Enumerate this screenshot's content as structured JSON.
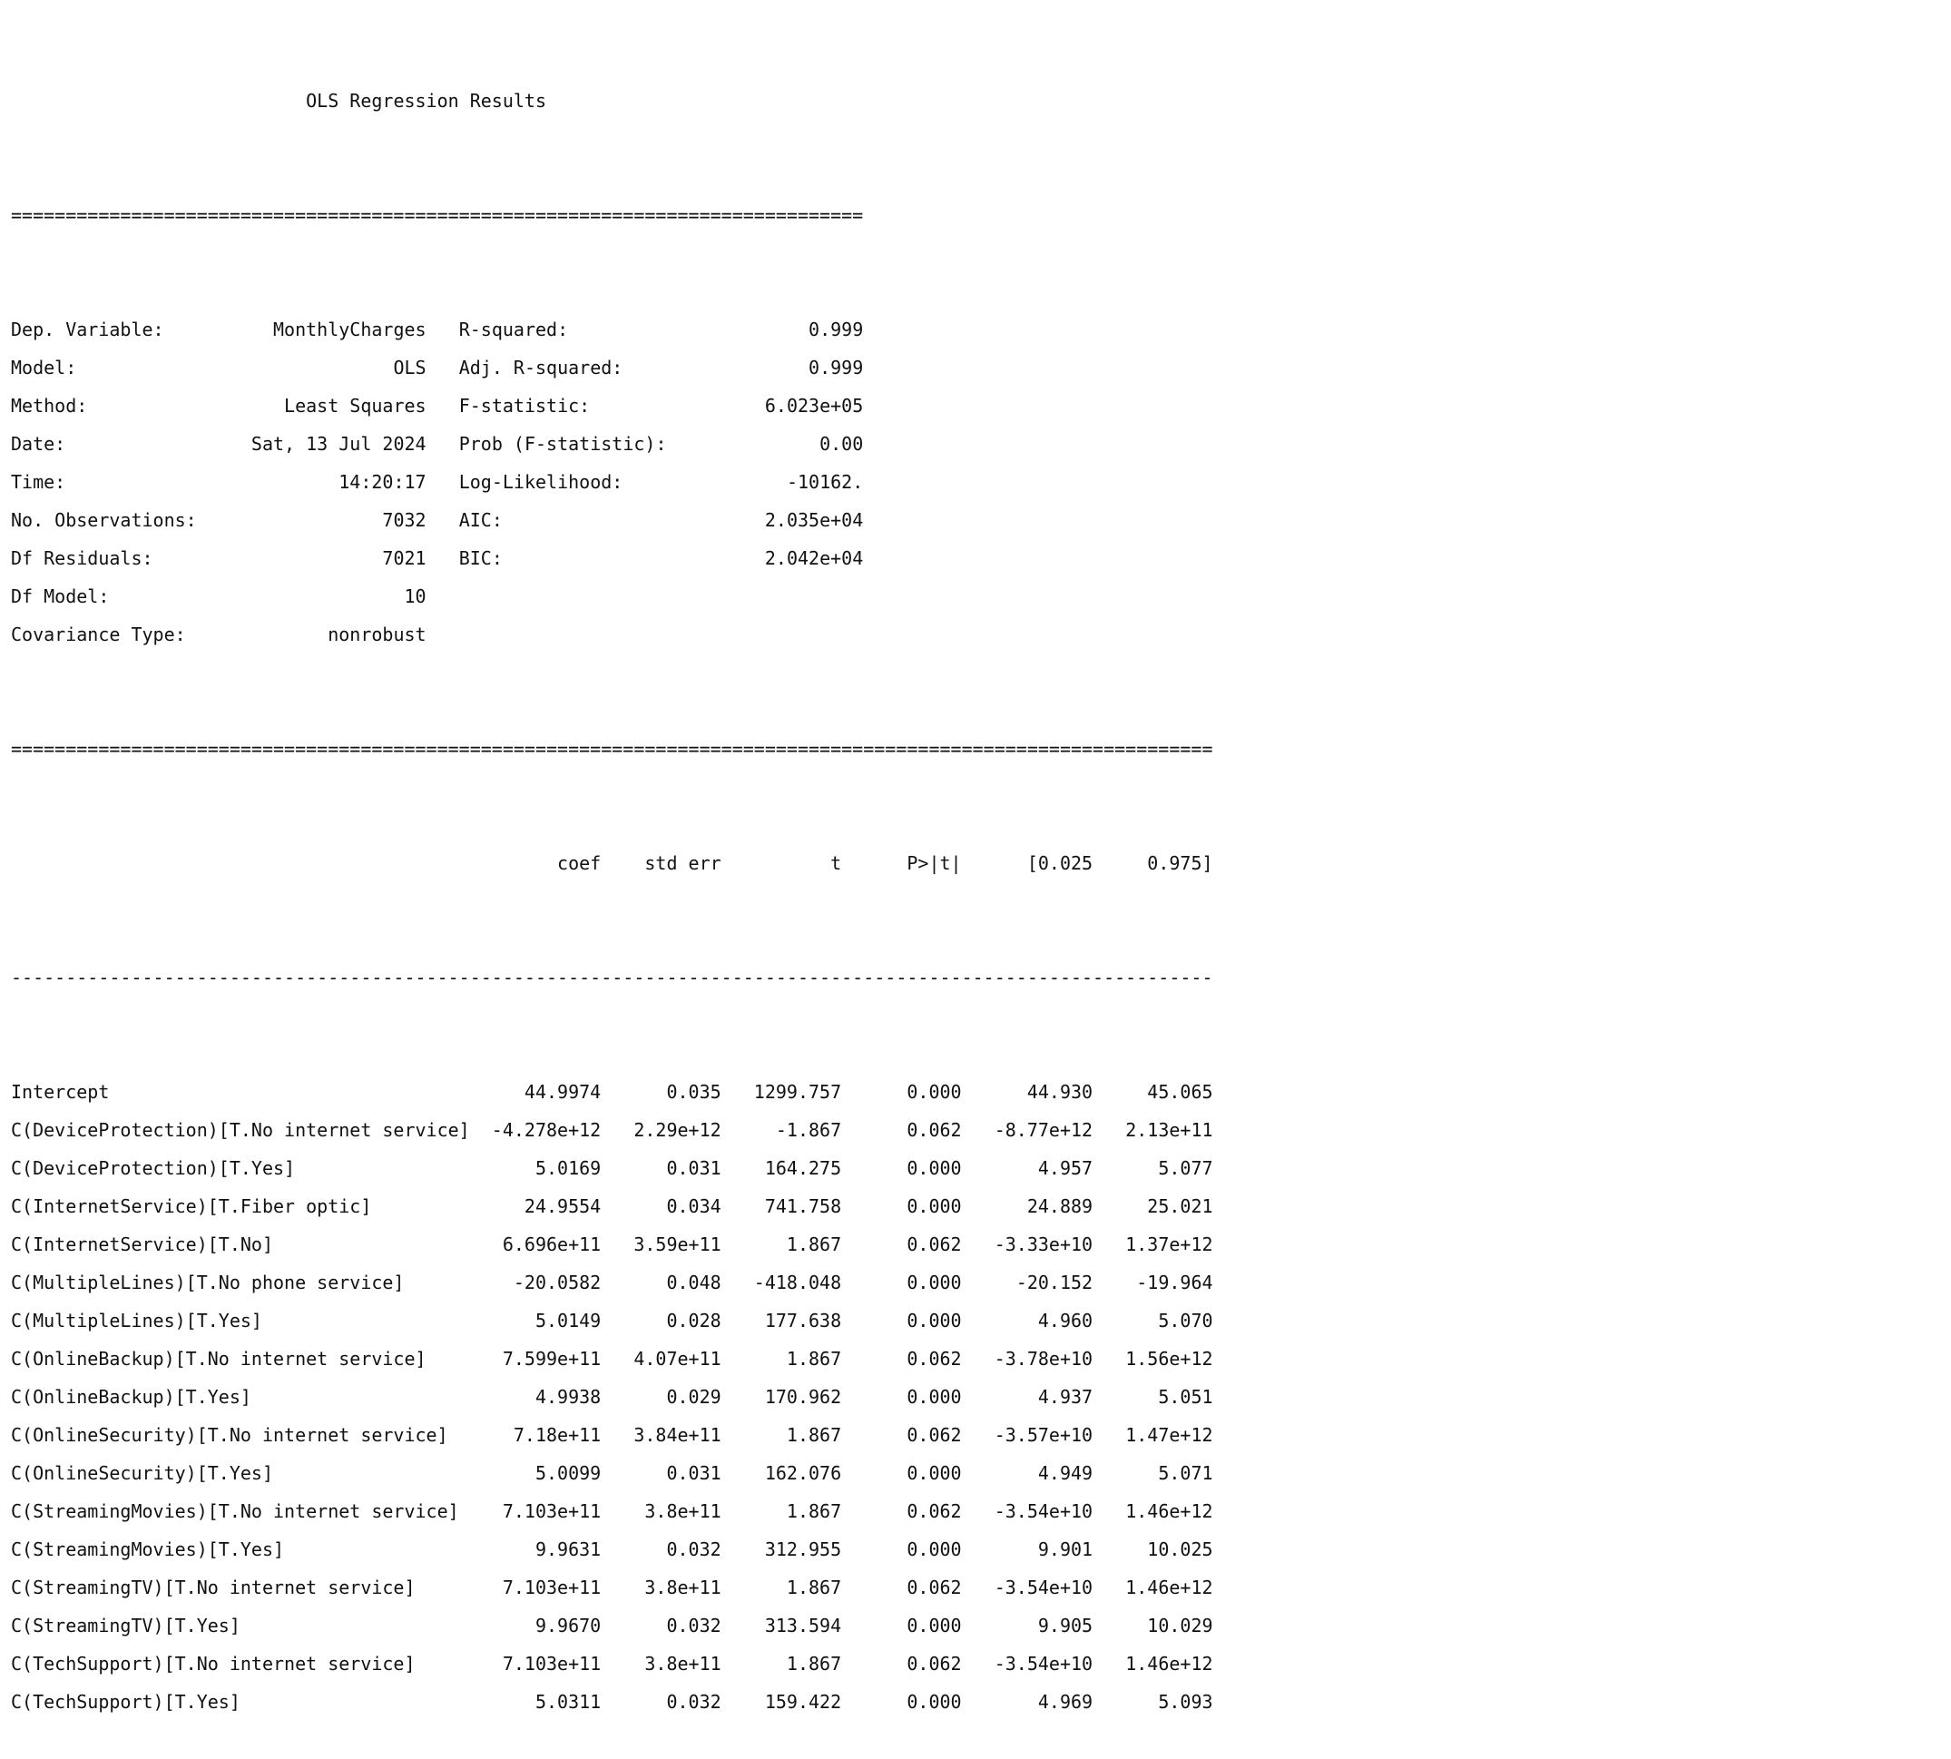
{
  "title": "OLS Regression Results",
  "separator_top": "==============================================================================",
  "separator_full": "==============================================================================================================",
  "separator_dash": "--------------------------------------------------------------------------------------------------------------",
  "summary": [
    [
      "Dep. Variable:",
      "MonthlyCharges",
      "R-squared:",
      "0.999"
    ],
    [
      "Model:",
      "OLS",
      "Adj. R-squared:",
      "0.999"
    ],
    [
      "Method:",
      "Least Squares",
      "F-statistic:",
      "6.023e+05"
    ],
    [
      "Date:",
      "Sat, 13 Jul 2024",
      "Prob (F-statistic):",
      "0.00"
    ],
    [
      "Time:",
      "14:20:17",
      "Log-Likelihood:",
      "-10162."
    ],
    [
      "No. Observations:",
      "7032",
      "AIC:",
      "2.035e+04"
    ],
    [
      "Df Residuals:",
      "7021",
      "BIC:",
      "2.042e+04"
    ],
    [
      "Df Model:",
      "10",
      "",
      ""
    ],
    [
      "Covariance Type:",
      "nonrobust",
      "",
      ""
    ]
  ],
  "coef_headers": [
    "",
    "coef",
    "std err",
    "t",
    "P>|t|",
    "[0.025",
    "0.975]"
  ],
  "coef_rows": [
    [
      "Intercept",
      "44.9974",
      "0.035",
      "1299.757",
      "0.000",
      "44.930",
      "45.065"
    ],
    [
      "C(DeviceProtection)[T.No internet service]",
      "-4.278e+12",
      "2.29e+12",
      "-1.867",
      "0.062",
      "-8.77e+12",
      "2.13e+11"
    ],
    [
      "C(DeviceProtection)[T.Yes]",
      "5.0169",
      "0.031",
      "164.275",
      "0.000",
      "4.957",
      "5.077"
    ],
    [
      "C(InternetService)[T.Fiber optic]",
      "24.9554",
      "0.034",
      "741.758",
      "0.000",
      "24.889",
      "25.021"
    ],
    [
      "C(InternetService)[T.No]",
      "6.696e+11",
      "3.59e+11",
      "1.867",
      "0.062",
      "-3.33e+10",
      "1.37e+12"
    ],
    [
      "C(MultipleLines)[T.No phone service]",
      "-20.0582",
      "0.048",
      "-418.048",
      "0.000",
      "-20.152",
      "-19.964"
    ],
    [
      "C(MultipleLines)[T.Yes]",
      "5.0149",
      "0.028",
      "177.638",
      "0.000",
      "4.960",
      "5.070"
    ],
    [
      "C(OnlineBackup)[T.No internet service]",
      "7.599e+11",
      "4.07e+11",
      "1.867",
      "0.062",
      "-3.78e+10",
      "1.56e+12"
    ],
    [
      "C(OnlineBackup)[T.Yes]",
      "4.9938",
      "0.029",
      "170.962",
      "0.000",
      "4.937",
      "5.051"
    ],
    [
      "C(OnlineSecurity)[T.No internet service]",
      "7.18e+11",
      "3.84e+11",
      "1.867",
      "0.062",
      "-3.57e+10",
      "1.47e+12"
    ],
    [
      "C(OnlineSecurity)[T.Yes]",
      "5.0099",
      "0.031",
      "162.076",
      "0.000",
      "4.949",
      "5.071"
    ],
    [
      "C(StreamingMovies)[T.No internet service]",
      "7.103e+11",
      "3.8e+11",
      "1.867",
      "0.062",
      "-3.54e+10",
      "1.46e+12"
    ],
    [
      "C(StreamingMovies)[T.Yes]",
      "9.9631",
      "0.032",
      "312.955",
      "0.000",
      "9.901",
      "10.025"
    ],
    [
      "C(StreamingTV)[T.No internet service]",
      "7.103e+11",
      "3.8e+11",
      "1.867",
      "0.062",
      "-3.54e+10",
      "1.46e+12"
    ],
    [
      "C(StreamingTV)[T.Yes]",
      "9.9670",
      "0.032",
      "313.594",
      "0.000",
      "9.905",
      "10.029"
    ],
    [
      "C(TechSupport)[T.No internet service]",
      "7.103e+11",
      "3.8e+11",
      "1.867",
      "0.062",
      "-3.54e+10",
      "1.46e+12"
    ],
    [
      "C(TechSupport)[T.Yes]",
      "5.0311",
      "0.032",
      "159.422",
      "0.000",
      "4.969",
      "5.093"
    ]
  ]
}
